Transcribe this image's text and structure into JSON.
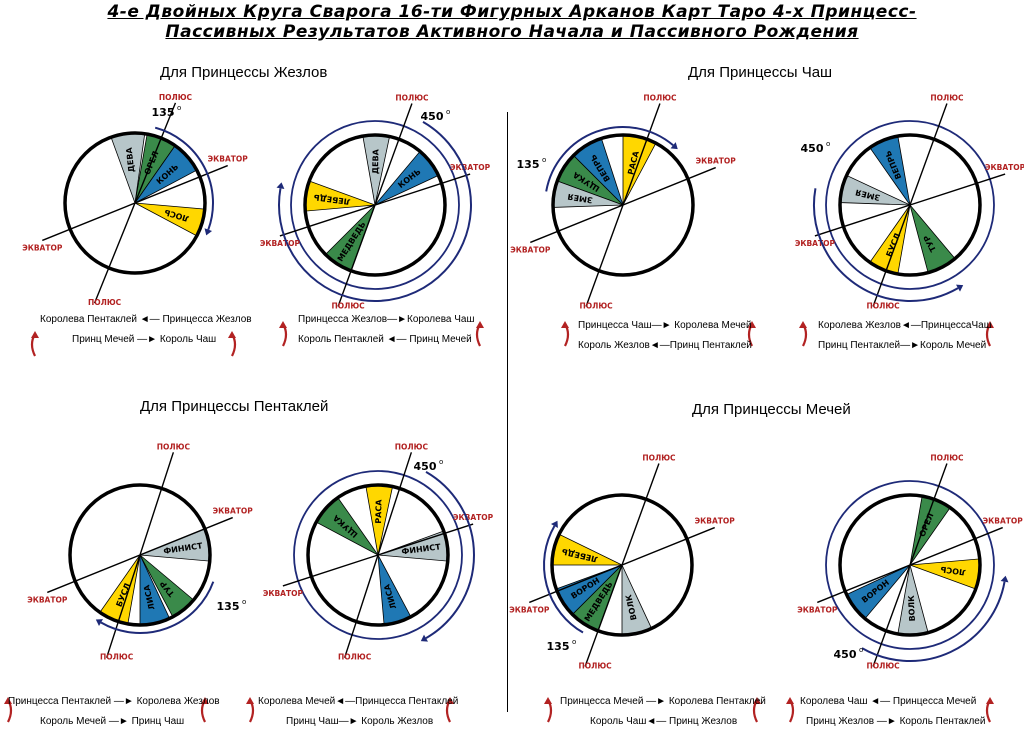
{
  "title": {
    "line1": "4-е Двойных Круга Сварога 16-ти Фигурных Арканов Карт Таро 4-х Принцесс-",
    "line2": "Пассивных Результатов Активного Начала и Пассивного Рождения"
  },
  "quadrant_titles": [
    "Для Принцессы Жезлов",
    "Для Принцессы Чаш",
    "Для Принцессы Пентаклей",
    "Для Принцессы  Мечей"
  ],
  "labels": {
    "pole": "ПОЛЮС",
    "equator": "ЭКВАТОР"
  },
  "colors": {
    "green": "#3a8a4a",
    "blue": "#1f78b4",
    "yellow": "#ffd700",
    "gray": "#b7c6c9",
    "red": "#b22222",
    "arc": "#1e2a78"
  },
  "diagrams": [
    {
      "angle": "135",
      "sectors": [
        {
          "label": "ДЕВА",
          "color": "gray"
        },
        {
          "label": "ОРЕЛ",
          "color": "green"
        },
        {
          "label": "КОНЬ",
          "color": "blue"
        },
        {
          "label": "ЛОСЬ",
          "color": "yellow"
        }
      ]
    },
    {
      "angle": "450",
      "sectors": [
        {
          "label": "ДЕВА",
          "color": "gray"
        },
        {
          "label": "КОНЬ",
          "color": "blue"
        },
        {
          "label": "ЛЕБЕДЬ",
          "color": "yellow"
        },
        {
          "label": "МЕДВЕДЬ",
          "color": "green"
        }
      ]
    },
    {
      "angle": "135",
      "sectors": [
        {
          "label": "ВЕПРЬ",
          "color": "blue"
        },
        {
          "label": "ЩУКА",
          "color": "green"
        },
        {
          "label": "РАСА",
          "color": "yellow"
        },
        {
          "label": "ЗМЕЯ",
          "color": "gray"
        }
      ]
    },
    {
      "angle": "450",
      "sectors": [
        {
          "label": "ВЕПРЬ",
          "color": "blue"
        },
        {
          "label": "ЗМЕЯ",
          "color": "gray"
        },
        {
          "label": "БУСЛ",
          "color": "yellow"
        },
        {
          "label": "ТУР",
          "color": "green"
        }
      ]
    },
    {
      "angle": "135",
      "sectors": [
        {
          "label": "ФИНИСТ",
          "color": "gray"
        },
        {
          "label": "ТУР",
          "color": "green"
        },
        {
          "label": "ЛИСА",
          "color": "blue"
        },
        {
          "label": "БУСЛ",
          "color": "yellow"
        }
      ]
    },
    {
      "angle": "450",
      "sectors": [
        {
          "label": "ЩУКА",
          "color": "green"
        },
        {
          "label": "РАСА",
          "color": "yellow"
        },
        {
          "label": "ФИНИСТ",
          "color": "gray"
        },
        {
          "label": "ЛИСА",
          "color": "blue"
        }
      ]
    },
    {
      "angle": "135",
      "sectors": [
        {
          "label": "ЛЕБЕДЬ",
          "color": "yellow"
        },
        {
          "label": "ВОРОН",
          "color": "blue"
        },
        {
          "label": "МЕДВЕДЬ",
          "color": "green"
        },
        {
          "label": "ВОЛК",
          "color": "gray"
        }
      ]
    },
    {
      "angle": "450",
      "sectors": [
        {
          "label": "ОРЕЛ",
          "color": "green"
        },
        {
          "label": "ЛОСЬ",
          "color": "yellow"
        },
        {
          "label": "ВОРОН",
          "color": "blue"
        },
        {
          "label": "ВОЛК",
          "color": "gray"
        }
      ]
    }
  ],
  "captions": [
    {
      "line1": "Королева Пентаклей ◄— Принцесса Жезлов",
      "line2": "Принц Мечей —► Король Чаш"
    },
    {
      "line1": "Принцесса Жезлов—►Королева Чаш",
      "line2": "Король Пентаклей ◄— Принц Мечей"
    },
    {
      "line1": "Принцесса Чаш—► Королева Мечей",
      "line2": "Король Жезлов◄—Принц Пентаклей"
    },
    {
      "line1": "Королева Жезлов◄—ПринцессаЧаш",
      "line2": "Принц Пентаклей—►Король Мечей"
    },
    {
      "line1": "Принцесса  Пентаклей —► Королева Жезлов",
      "line2": "Король Мечей —► Принц Чаш"
    },
    {
      "line1": "Королева Мечей◄—Принцесса Пентаклей",
      "line2": "Принц Чаш—► Король Жезлов"
    },
    {
      "line1": "Принцесса Мечей  —► Королева Пентаклей",
      "line2": "Король Чаш◄— Принц Жезлов"
    },
    {
      "line1": "Королева Чаш ◄— Принцесса Мечей",
      "line2": "Принц Жезлов —► Король Пентаклей"
    }
  ]
}
